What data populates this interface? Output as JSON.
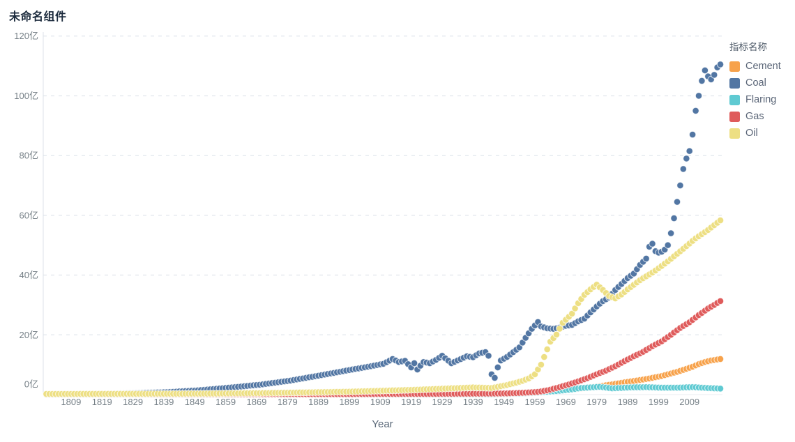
{
  "title": "未命名组件",
  "legend": {
    "title": "指标名称",
    "items": [
      {
        "label": "Cement",
        "color": "#F7A24B"
      },
      {
        "label": "Coal",
        "color": "#5276A3"
      },
      {
        "label": "Flaring",
        "color": "#5FCAD2"
      },
      {
        "label": "Gas",
        "color": "#DF5B5B"
      },
      {
        "label": "Oil",
        "color": "#EDDF83"
      }
    ]
  },
  "axes": {
    "y": {
      "unit": "亿",
      "tick_values": [
        0,
        20,
        40,
        60,
        80,
        100,
        120
      ],
      "tick_labels": [
        "0亿",
        "20亿",
        "40亿",
        "60亿",
        "80亿",
        "100亿",
        "120亿"
      ]
    },
    "x": {
      "label": "Year",
      "tick_labels": [
        "1809",
        "1819",
        "1829",
        "1839",
        "1849",
        "1859",
        "1869",
        "1879",
        "1889",
        "1899",
        "1909",
        "1919",
        "1929",
        "1939",
        "1949",
        "1959",
        "1969",
        "1979",
        "1989",
        "1999",
        "2009"
      ]
    }
  },
  "chart_data": {
    "type": "scatter",
    "title": "未命名组件",
    "xlabel": "Year",
    "ylabel": "亿",
    "x_range": [
      1801,
      2019
    ],
    "ylim": [
      0,
      124
    ],
    "grid": "horizontal-dashed",
    "legend_position": "right",
    "legend_title": "指标名称",
    "marker": "circle-yearly",
    "series": [
      {
        "name": "Cement",
        "color": "#F7A24B",
        "points": [
          [
            1801,
            0.05
          ],
          [
            1900,
            0.1
          ],
          [
            1930,
            0.2
          ],
          [
            1950,
            0.3
          ],
          [
            1955,
            0.5
          ],
          [
            1960,
            0.8
          ],
          [
            1965,
            1.2
          ],
          [
            1970,
            1.7
          ],
          [
            1975,
            2.2
          ],
          [
            1980,
            2.8
          ],
          [
            1985,
            3.6
          ],
          [
            1990,
            4.4
          ],
          [
            1995,
            5.2
          ],
          [
            2000,
            6.2
          ],
          [
            2005,
            7.6
          ],
          [
            2008,
            8.6
          ],
          [
            2010,
            9.3
          ],
          [
            2012,
            10.2
          ],
          [
            2014,
            10.9
          ],
          [
            2016,
            11.4
          ],
          [
            2019,
            11.9
          ]
        ]
      },
      {
        "name": "Coal",
        "color": "#5276A3",
        "points": [
          [
            1801,
            0.1
          ],
          [
            1820,
            0.25
          ],
          [
            1830,
            0.45
          ],
          [
            1840,
            0.8
          ],
          [
            1850,
            1.4
          ],
          [
            1860,
            2.3
          ],
          [
            1870,
            3.3
          ],
          [
            1880,
            4.7
          ],
          [
            1890,
            6.5
          ],
          [
            1900,
            8.4
          ],
          [
            1905,
            9.3
          ],
          [
            1910,
            10.3
          ],
          [
            1913,
            11.9
          ],
          [
            1915,
            10.9
          ],
          [
            1917,
            11.3
          ],
          [
            1919,
            9.1
          ],
          [
            1920,
            10.5
          ],
          [
            1921,
            8.4
          ],
          [
            1923,
            10.9
          ],
          [
            1925,
            10.5
          ],
          [
            1927,
            11.6
          ],
          [
            1929,
            13.0
          ],
          [
            1932,
            10.5
          ],
          [
            1934,
            11.4
          ],
          [
            1937,
            12.8
          ],
          [
            1939,
            12.5
          ],
          [
            1941,
            13.8
          ],
          [
            1943,
            14.2
          ],
          [
            1944,
            13.0
          ],
          [
            1945,
            6.8
          ],
          [
            1946,
            5.6
          ],
          [
            1947,
            9.1
          ],
          [
            1948,
            11.4
          ],
          [
            1950,
            12.6
          ],
          [
            1952,
            14.2
          ],
          [
            1954,
            15.8
          ],
          [
            1956,
            19.0
          ],
          [
            1958,
            22.0
          ],
          [
            1960,
            24.3
          ],
          [
            1961,
            22.8
          ],
          [
            1963,
            22.2
          ],
          [
            1965,
            22.0
          ],
          [
            1967,
            22.4
          ],
          [
            1969,
            23.0
          ],
          [
            1971,
            23.3
          ],
          [
            1973,
            24.5
          ],
          [
            1975,
            25.4
          ],
          [
            1977,
            27.5
          ],
          [
            1979,
            29.5
          ],
          [
            1981,
            31.3
          ],
          [
            1983,
            32.5
          ],
          [
            1985,
            35.0
          ],
          [
            1987,
            37.0
          ],
          [
            1989,
            39.0
          ],
          [
            1991,
            40.5
          ],
          [
            1993,
            43.4
          ],
          [
            1995,
            45.5
          ],
          [
            1996,
            49.5
          ],
          [
            1997,
            50.5
          ],
          [
            1998,
            48.0
          ],
          [
            1999,
            47.5
          ],
          [
            2000,
            47.8
          ],
          [
            2001,
            48.5
          ],
          [
            2002,
            50.0
          ],
          [
            2003,
            54.0
          ],
          [
            2004,
            59.0
          ],
          [
            2005,
            64.5
          ],
          [
            2006,
            70.0
          ],
          [
            2007,
            75.5
          ],
          [
            2008,
            79.0
          ],
          [
            2009,
            81.5
          ],
          [
            2010,
            87.0
          ],
          [
            2011,
            95.0
          ],
          [
            2012,
            100.0
          ],
          [
            2013,
            105.0
          ],
          [
            2014,
            108.5
          ],
          [
            2015,
            106.5
          ],
          [
            2016,
            105.5
          ],
          [
            2017,
            107.0
          ],
          [
            2018,
            109.5
          ],
          [
            2019,
            110.5
          ]
        ]
      },
      {
        "name": "Flaring",
        "color": "#5FCAD2",
        "points": [
          [
            1801,
            0.02
          ],
          [
            1930,
            0.05
          ],
          [
            1945,
            0.1
          ],
          [
            1950,
            0.2
          ],
          [
            1955,
            0.4
          ],
          [
            1960,
            0.7
          ],
          [
            1965,
            1.1
          ],
          [
            1970,
            1.6
          ],
          [
            1974,
            2.2
          ],
          [
            1980,
            2.6
          ],
          [
            1984,
            2.1
          ],
          [
            1990,
            2.4
          ],
          [
            1995,
            2.5
          ],
          [
            2000,
            2.3
          ],
          [
            2005,
            2.3
          ],
          [
            2010,
            2.5
          ],
          [
            2015,
            2.2
          ],
          [
            2019,
            2.0
          ]
        ]
      },
      {
        "name": "Gas",
        "color": "#DF5B5B",
        "points": [
          [
            1801,
            0.1
          ],
          [
            1900,
            0.15
          ],
          [
            1930,
            0.25
          ],
          [
            1940,
            0.3
          ],
          [
            1945,
            0.35
          ],
          [
            1950,
            0.4
          ],
          [
            1955,
            0.6
          ],
          [
            1960,
            0.9
          ],
          [
            1963,
            1.4
          ],
          [
            1966,
            2.2
          ],
          [
            1970,
            3.4
          ],
          [
            1973,
            4.4
          ],
          [
            1976,
            5.5
          ],
          [
            1979,
            6.8
          ],
          [
            1982,
            8.0
          ],
          [
            1985,
            9.5
          ],
          [
            1988,
            11.2
          ],
          [
            1991,
            12.8
          ],
          [
            1994,
            14.3
          ],
          [
            1997,
            16.2
          ],
          [
            2000,
            17.8
          ],
          [
            2003,
            20.0
          ],
          [
            2006,
            22.3
          ],
          [
            2009,
            24.2
          ],
          [
            2012,
            26.6
          ],
          [
            2015,
            28.8
          ],
          [
            2017,
            30.0
          ],
          [
            2019,
            31.3
          ]
        ]
      },
      {
        "name": "Oil",
        "color": "#EDDF83",
        "points": [
          [
            1801,
            0.2
          ],
          [
            1850,
            0.3
          ],
          [
            1870,
            0.5
          ],
          [
            1890,
            0.8
          ],
          [
            1900,
            1.0
          ],
          [
            1910,
            1.3
          ],
          [
            1920,
            1.6
          ],
          [
            1930,
            2.0
          ],
          [
            1939,
            2.4
          ],
          [
            1945,
            2.2
          ],
          [
            1950,
            3.2
          ],
          [
            1953,
            4.0
          ],
          [
            1955,
            4.6
          ],
          [
            1957,
            5.4
          ],
          [
            1959,
            6.8
          ],
          [
            1961,
            10.0
          ],
          [
            1964,
            17.7
          ],
          [
            1966,
            20.1
          ],
          [
            1968,
            24.0
          ],
          [
            1971,
            27.1
          ],
          [
            1973,
            30.6
          ],
          [
            1975,
            33.4
          ],
          [
            1977,
            35.2
          ],
          [
            1979,
            36.8
          ],
          [
            1981,
            35.0
          ],
          [
            1983,
            33.0
          ],
          [
            1985,
            32.2
          ],
          [
            1987,
            33.5
          ],
          [
            1989,
            35.2
          ],
          [
            1993,
            38.3
          ],
          [
            1998,
            41.5
          ],
          [
            2002,
            44.6
          ],
          [
            2007,
            48.8
          ],
          [
            2011,
            52.3
          ],
          [
            2015,
            55.1
          ],
          [
            2019,
            58.3
          ]
        ]
      }
    ]
  }
}
